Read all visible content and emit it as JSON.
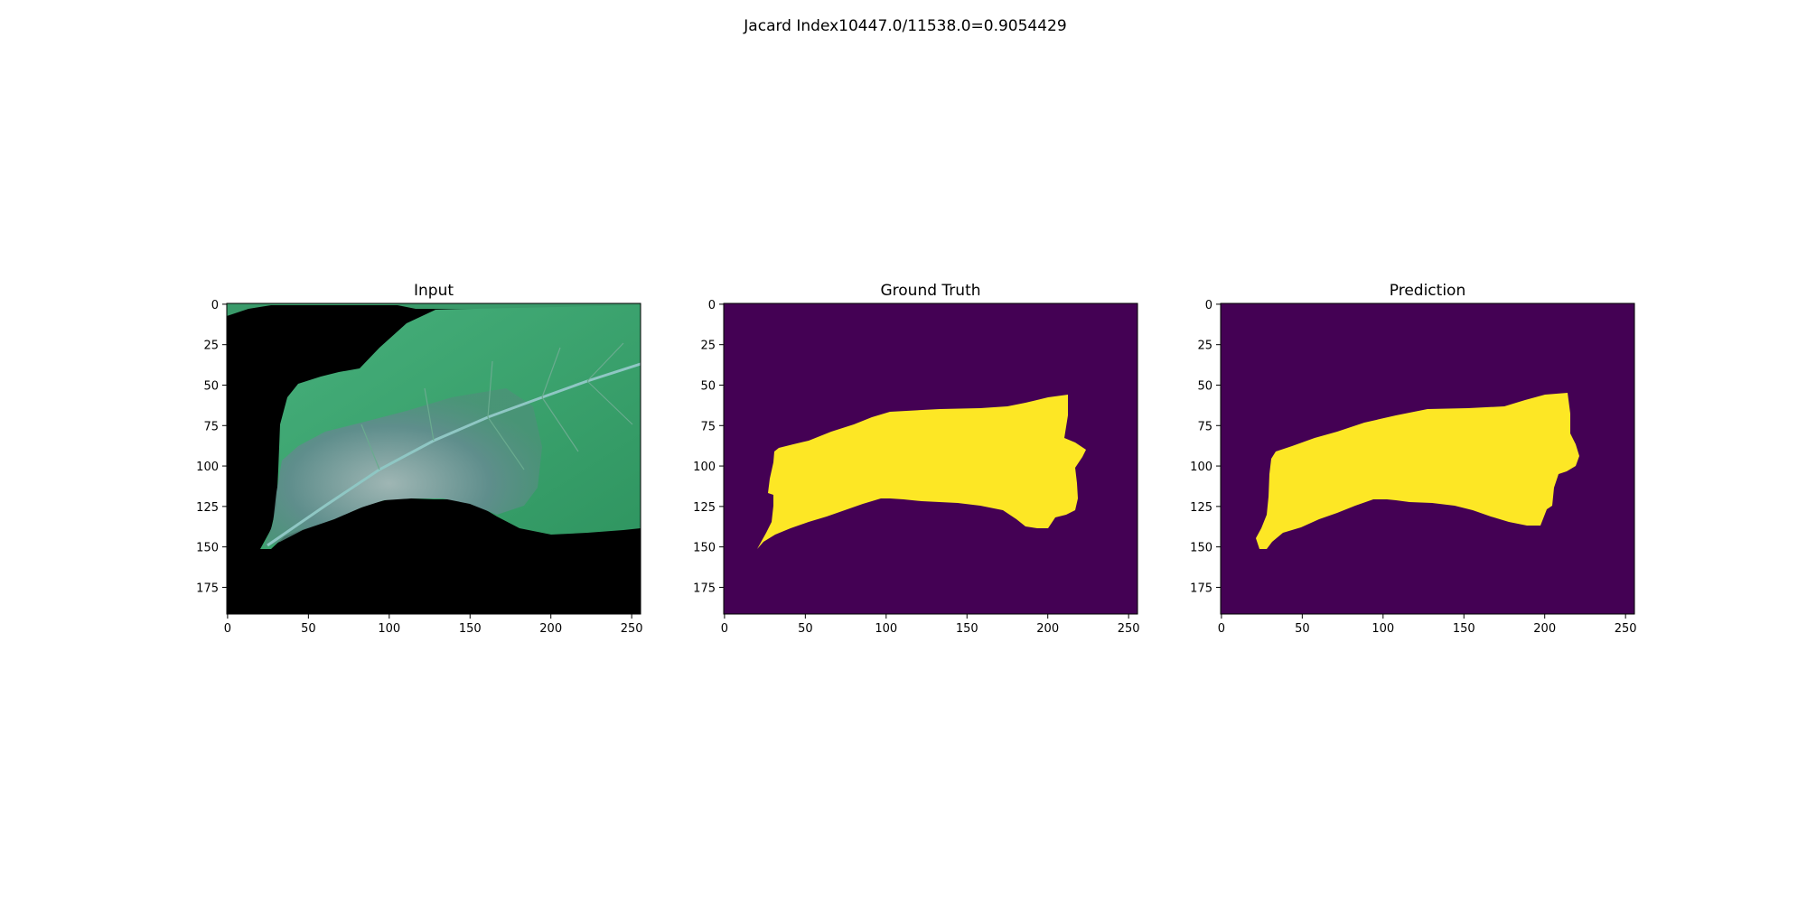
{
  "figure": {
    "suptitle": "Jacard Index10447.0/11538.0=0.9054429"
  },
  "chart_data": [
    {
      "type": "image",
      "title": "Input",
      "x_ticks": [
        0,
        50,
        100,
        150,
        200,
        250
      ],
      "y_ticks": [
        0,
        25,
        50,
        75,
        100,
        125,
        150,
        175
      ],
      "xlim": [
        -0.5,
        255.5
      ],
      "ylim": [
        191.5,
        -0.5
      ],
      "content": "rgb photo of a leaf on black background",
      "colors": {
        "background": "#000000",
        "leaf": "#3fa872",
        "lesion": "#5d8a8c"
      }
    },
    {
      "type": "heatmap",
      "title": "Ground Truth",
      "x_ticks": [
        0,
        50,
        100,
        150,
        200,
        250
      ],
      "y_ticks": [
        0,
        25,
        50,
        75,
        100,
        125,
        150,
        175
      ],
      "xlim": [
        -0.5,
        255.5
      ],
      "ylim": [
        191.5,
        -0.5
      ],
      "colormap": "viridis",
      "colors": {
        "background": "#440154",
        "mask": "#fde725"
      }
    },
    {
      "type": "heatmap",
      "title": "Prediction",
      "x_ticks": [
        0,
        50,
        100,
        150,
        200,
        250
      ],
      "y_ticks": [
        0,
        25,
        50,
        75,
        100,
        125,
        150,
        175
      ],
      "xlim": [
        -0.5,
        255.5
      ],
      "ylim": [
        191.5,
        -0.5
      ],
      "colormap": "viridis",
      "colors": {
        "background": "#440154",
        "mask": "#fde725"
      }
    }
  ]
}
